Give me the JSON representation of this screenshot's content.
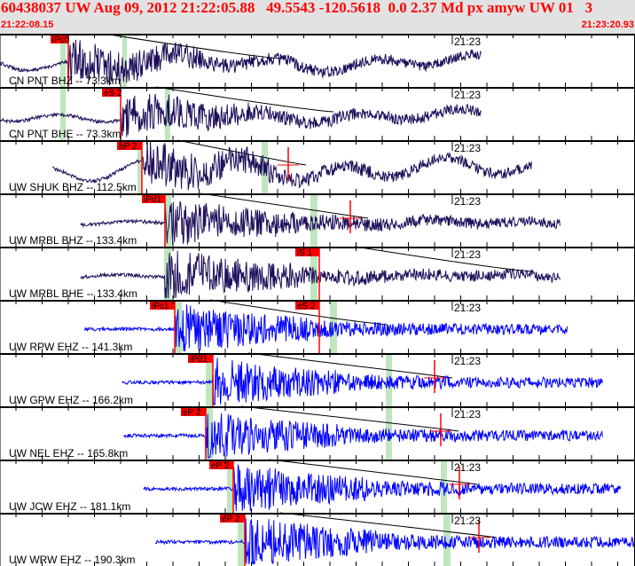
{
  "header": {
    "title": "60438037 UW Aug 09, 2012 21:22:05.88   49.5543 -120.5618  0.0 2.37 Md px amyw UW 01   3",
    "start_time": "21:22:08.15",
    "end_time": "21:23:20.93"
  },
  "time_mark": "21:23",
  "colors": {
    "header_text": "#ff0000",
    "header_bg": "#e2e2e2",
    "broadband_trace": "#1e0e5a",
    "short_period_trace": "#0000ff",
    "pick": "#ff0000",
    "window": "#bfe6bf"
  },
  "panels": [
    {
      "label": "CN PNT BHZ -- 73.3km",
      "type": "broadband",
      "pick": "iPc0"
    },
    {
      "label": "CN PNT BHE -- 73.3km",
      "type": "broadband",
      "pick": "eS 2"
    },
    {
      "label": "UW SHUK BHZ -- 112.5km",
      "type": "broadband",
      "pick": "eP 2"
    },
    {
      "label": "UW MRBL BHZ -- 133.4km",
      "type": "broadband",
      "pick": "iPd1"
    },
    {
      "label": "UW MRBL BHE -- 133.4km",
      "type": "broadband",
      "pick": "iS 1"
    },
    {
      "label": "UW RPW EHZ -- 141.3km",
      "type": "short_period",
      "pick": "iPc1",
      "pick2": "eS 2"
    },
    {
      "label": "UW GPW EHZ -- 166.2km",
      "type": "short_period",
      "pick": "iPd1"
    },
    {
      "label": "UW NEL EHZ -- 165.8km",
      "type": "short_period",
      "pick": "eP 2"
    },
    {
      "label": "UW JCW EHZ -- 181.1km",
      "type": "short_period",
      "pick": "eP 2"
    },
    {
      "label": "UW WRW EHZ -- 190.3km",
      "type": "short_period",
      "pick": "eP 2"
    }
  ]
}
